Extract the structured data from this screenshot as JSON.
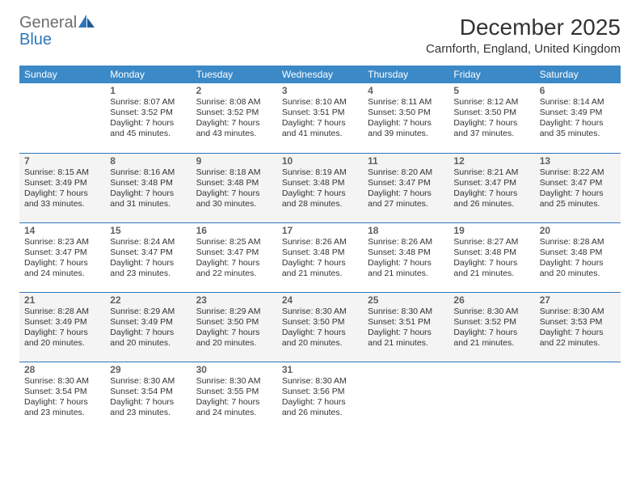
{
  "logo": {
    "part1": "General",
    "part2": "Blue"
  },
  "title": "December 2025",
  "location": "Carnforth, England, United Kingdom",
  "colors": {
    "header_bg": "#3b89c7",
    "header_text": "#ffffff",
    "row_alt_bg": "#f4f4f4",
    "border": "#2b77bb",
    "logo_gray": "#6d6d6d",
    "logo_blue": "#2b77bb",
    "body_text": "#333333"
  },
  "weekdays": [
    "Sunday",
    "Monday",
    "Tuesday",
    "Wednesday",
    "Thursday",
    "Friday",
    "Saturday"
  ],
  "weeks": [
    {
      "alt": false,
      "days": [
        null,
        {
          "n": "1",
          "sr": "Sunrise: 8:07 AM",
          "ss": "Sunset: 3:52 PM",
          "d1": "Daylight: 7 hours",
          "d2": "and 45 minutes."
        },
        {
          "n": "2",
          "sr": "Sunrise: 8:08 AM",
          "ss": "Sunset: 3:52 PM",
          "d1": "Daylight: 7 hours",
          "d2": "and 43 minutes."
        },
        {
          "n": "3",
          "sr": "Sunrise: 8:10 AM",
          "ss": "Sunset: 3:51 PM",
          "d1": "Daylight: 7 hours",
          "d2": "and 41 minutes."
        },
        {
          "n": "4",
          "sr": "Sunrise: 8:11 AM",
          "ss": "Sunset: 3:50 PM",
          "d1": "Daylight: 7 hours",
          "d2": "and 39 minutes."
        },
        {
          "n": "5",
          "sr": "Sunrise: 8:12 AM",
          "ss": "Sunset: 3:50 PM",
          "d1": "Daylight: 7 hours",
          "d2": "and 37 minutes."
        },
        {
          "n": "6",
          "sr": "Sunrise: 8:14 AM",
          "ss": "Sunset: 3:49 PM",
          "d1": "Daylight: 7 hours",
          "d2": "and 35 minutes."
        }
      ]
    },
    {
      "alt": true,
      "days": [
        {
          "n": "7",
          "sr": "Sunrise: 8:15 AM",
          "ss": "Sunset: 3:49 PM",
          "d1": "Daylight: 7 hours",
          "d2": "and 33 minutes."
        },
        {
          "n": "8",
          "sr": "Sunrise: 8:16 AM",
          "ss": "Sunset: 3:48 PM",
          "d1": "Daylight: 7 hours",
          "d2": "and 31 minutes."
        },
        {
          "n": "9",
          "sr": "Sunrise: 8:18 AM",
          "ss": "Sunset: 3:48 PM",
          "d1": "Daylight: 7 hours",
          "d2": "and 30 minutes."
        },
        {
          "n": "10",
          "sr": "Sunrise: 8:19 AM",
          "ss": "Sunset: 3:48 PM",
          "d1": "Daylight: 7 hours",
          "d2": "and 28 minutes."
        },
        {
          "n": "11",
          "sr": "Sunrise: 8:20 AM",
          "ss": "Sunset: 3:47 PM",
          "d1": "Daylight: 7 hours",
          "d2": "and 27 minutes."
        },
        {
          "n": "12",
          "sr": "Sunrise: 8:21 AM",
          "ss": "Sunset: 3:47 PM",
          "d1": "Daylight: 7 hours",
          "d2": "and 26 minutes."
        },
        {
          "n": "13",
          "sr": "Sunrise: 8:22 AM",
          "ss": "Sunset: 3:47 PM",
          "d1": "Daylight: 7 hours",
          "d2": "and 25 minutes."
        }
      ]
    },
    {
      "alt": false,
      "days": [
        {
          "n": "14",
          "sr": "Sunrise: 8:23 AM",
          "ss": "Sunset: 3:47 PM",
          "d1": "Daylight: 7 hours",
          "d2": "and 24 minutes."
        },
        {
          "n": "15",
          "sr": "Sunrise: 8:24 AM",
          "ss": "Sunset: 3:47 PM",
          "d1": "Daylight: 7 hours",
          "d2": "and 23 minutes."
        },
        {
          "n": "16",
          "sr": "Sunrise: 8:25 AM",
          "ss": "Sunset: 3:47 PM",
          "d1": "Daylight: 7 hours",
          "d2": "and 22 minutes."
        },
        {
          "n": "17",
          "sr": "Sunrise: 8:26 AM",
          "ss": "Sunset: 3:48 PM",
          "d1": "Daylight: 7 hours",
          "d2": "and 21 minutes."
        },
        {
          "n": "18",
          "sr": "Sunrise: 8:26 AM",
          "ss": "Sunset: 3:48 PM",
          "d1": "Daylight: 7 hours",
          "d2": "and 21 minutes."
        },
        {
          "n": "19",
          "sr": "Sunrise: 8:27 AM",
          "ss": "Sunset: 3:48 PM",
          "d1": "Daylight: 7 hours",
          "d2": "and 21 minutes."
        },
        {
          "n": "20",
          "sr": "Sunrise: 8:28 AM",
          "ss": "Sunset: 3:48 PM",
          "d1": "Daylight: 7 hours",
          "d2": "and 20 minutes."
        }
      ]
    },
    {
      "alt": true,
      "days": [
        {
          "n": "21",
          "sr": "Sunrise: 8:28 AM",
          "ss": "Sunset: 3:49 PM",
          "d1": "Daylight: 7 hours",
          "d2": "and 20 minutes."
        },
        {
          "n": "22",
          "sr": "Sunrise: 8:29 AM",
          "ss": "Sunset: 3:49 PM",
          "d1": "Daylight: 7 hours",
          "d2": "and 20 minutes."
        },
        {
          "n": "23",
          "sr": "Sunrise: 8:29 AM",
          "ss": "Sunset: 3:50 PM",
          "d1": "Daylight: 7 hours",
          "d2": "and 20 minutes."
        },
        {
          "n": "24",
          "sr": "Sunrise: 8:30 AM",
          "ss": "Sunset: 3:50 PM",
          "d1": "Daylight: 7 hours",
          "d2": "and 20 minutes."
        },
        {
          "n": "25",
          "sr": "Sunrise: 8:30 AM",
          "ss": "Sunset: 3:51 PM",
          "d1": "Daylight: 7 hours",
          "d2": "and 21 minutes."
        },
        {
          "n": "26",
          "sr": "Sunrise: 8:30 AM",
          "ss": "Sunset: 3:52 PM",
          "d1": "Daylight: 7 hours",
          "d2": "and 21 minutes."
        },
        {
          "n": "27",
          "sr": "Sunrise: 8:30 AM",
          "ss": "Sunset: 3:53 PM",
          "d1": "Daylight: 7 hours",
          "d2": "and 22 minutes."
        }
      ]
    },
    {
      "alt": false,
      "days": [
        {
          "n": "28",
          "sr": "Sunrise: 8:30 AM",
          "ss": "Sunset: 3:54 PM",
          "d1": "Daylight: 7 hours",
          "d2": "and 23 minutes."
        },
        {
          "n": "29",
          "sr": "Sunrise: 8:30 AM",
          "ss": "Sunset: 3:54 PM",
          "d1": "Daylight: 7 hours",
          "d2": "and 23 minutes."
        },
        {
          "n": "30",
          "sr": "Sunrise: 8:30 AM",
          "ss": "Sunset: 3:55 PM",
          "d1": "Daylight: 7 hours",
          "d2": "and 24 minutes."
        },
        {
          "n": "31",
          "sr": "Sunrise: 8:30 AM",
          "ss": "Sunset: 3:56 PM",
          "d1": "Daylight: 7 hours",
          "d2": "and 26 minutes."
        },
        null,
        null,
        null
      ]
    }
  ]
}
